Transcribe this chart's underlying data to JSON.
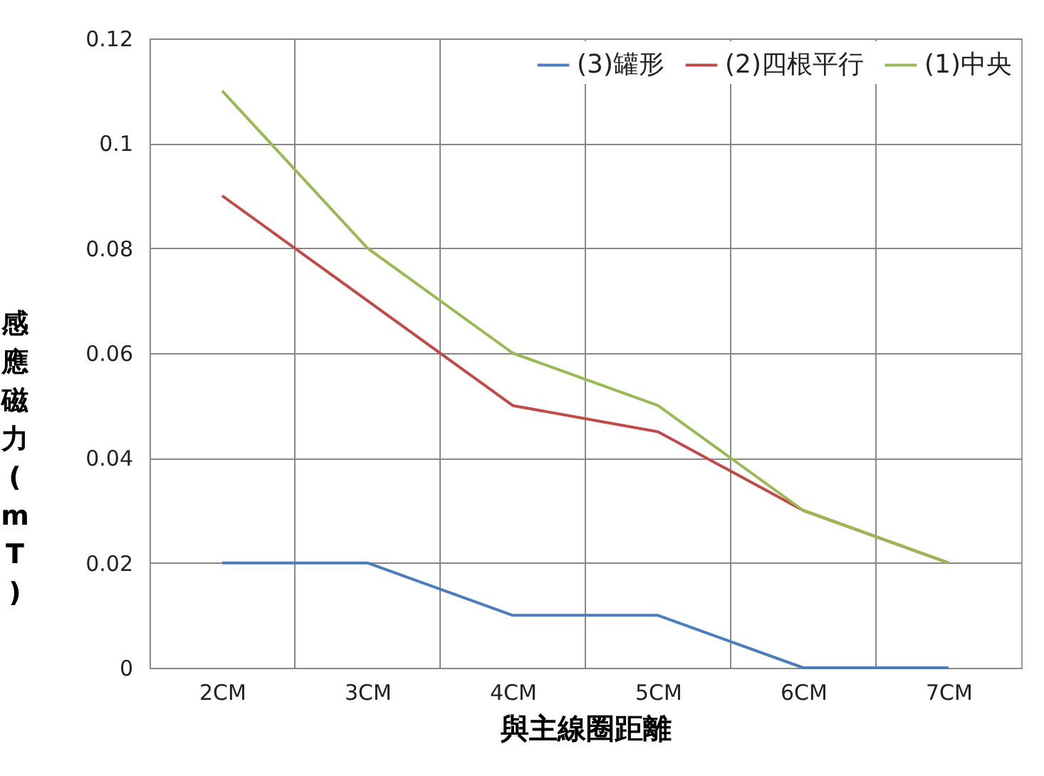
{
  "chart_data": {
    "type": "line",
    "xlabel": "與主線圈距離",
    "ylabel": "感應磁力(mT)",
    "categories": [
      "2CM",
      "3CM",
      "4CM",
      "5CM",
      "6CM",
      "7CM"
    ],
    "series": [
      {
        "name": "(3)罐形",
        "color": "#4a7ebb",
        "values": [
          0.02,
          0.02,
          0.01,
          0.01,
          0,
          0
        ]
      },
      {
        "name": "(2)四根平行",
        "color": "#be4b48",
        "values": [
          0.09,
          0.07,
          0.05,
          0.045,
          0.03,
          0.02
        ]
      },
      {
        "name": "(1)中央",
        "color": "#98b954",
        "values": [
          0.11,
          0.08,
          0.06,
          0.05,
          0.03,
          0.02
        ]
      }
    ],
    "ylim": [
      0,
      0.12
    ],
    "yticks": [
      0,
      0.02,
      0.04,
      0.06,
      0.08,
      0.1,
      0.12
    ],
    "grid": true,
    "legend": "top right",
    "marker": "none",
    "line_style": "solid"
  }
}
